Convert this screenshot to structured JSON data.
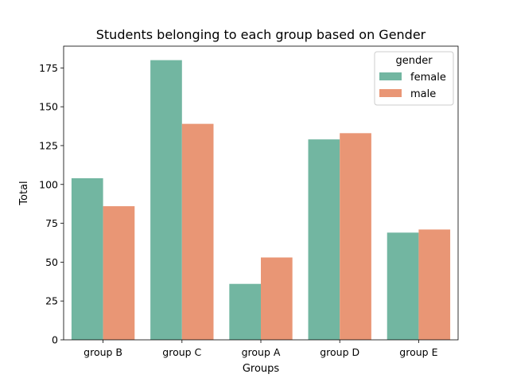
{
  "chart_data": {
    "type": "bar",
    "title": "Students belonging to each group based on Gender",
    "xlabel": "Groups",
    "ylabel": "Total",
    "categories": [
      "group B",
      "group C",
      "group A",
      "group D",
      "group E"
    ],
    "series": [
      {
        "name": "female",
        "color": "#72b6a1",
        "values": [
          104,
          180,
          36,
          129,
          69
        ]
      },
      {
        "name": "male",
        "color": "#e99675",
        "values": [
          86,
          139,
          53,
          133,
          71
        ]
      }
    ],
    "ylim": [
      0,
      189
    ],
    "yticks": [
      0,
      25,
      50,
      75,
      100,
      125,
      150,
      175
    ],
    "grid": false,
    "legend": {
      "title": "gender",
      "placement": "top-right"
    }
  }
}
